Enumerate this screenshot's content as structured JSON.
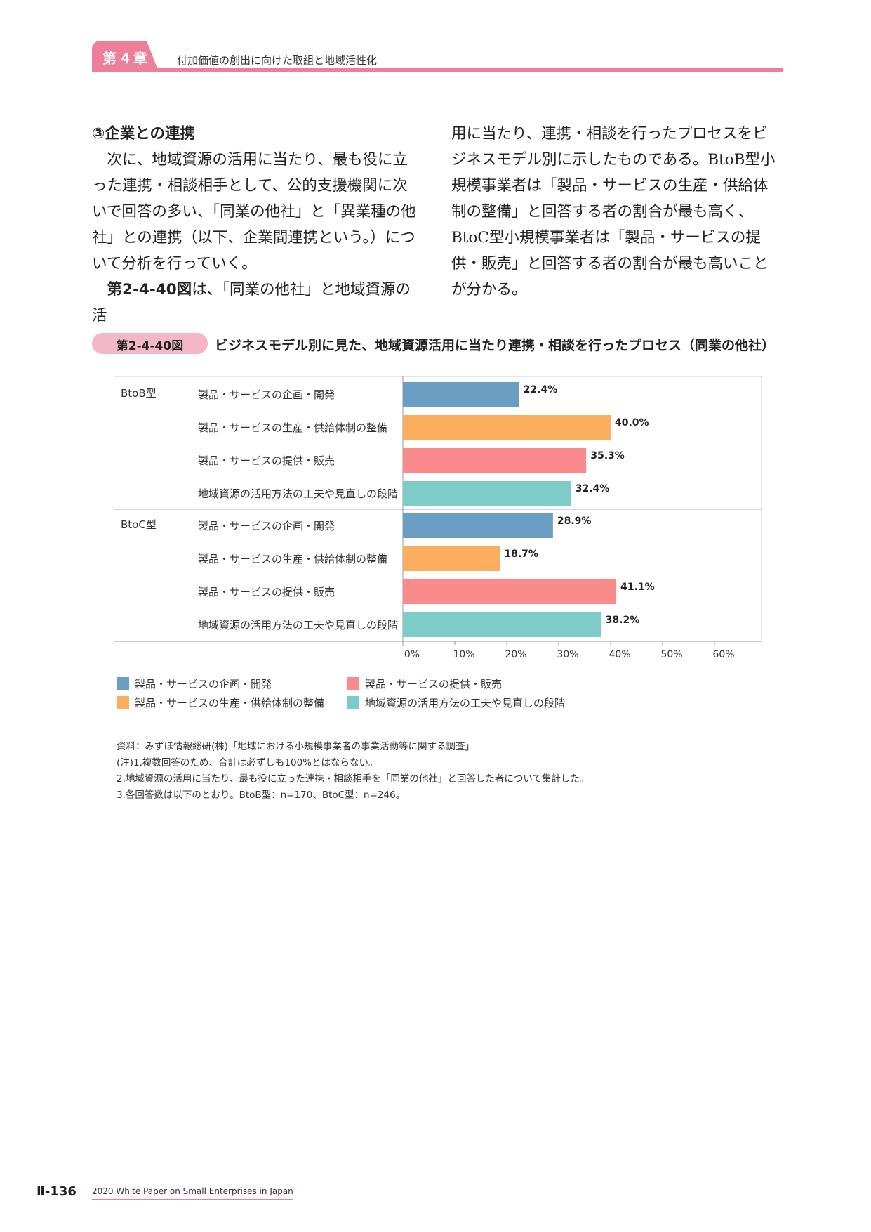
{
  "header": {
    "chapter": "第４章",
    "title": "付加価値の創出に向けた取組と地域活性化"
  },
  "body": {
    "section_heading": "③企業との連携",
    "para1": "次に、地域資源の活用に当たり、最も役に立った連携・相談相手として、公的支援機関に次いで回答の多い、「同業の他社」と「異業種の他社」との連携（以下、企業間連携という。）について分析を行っていく。",
    "para2_ref": "第2-4-40図",
    "para2_rest": "は、「同業の他社」と地域資源の活用に当たり、連携・相談を行ったプロセスをビジネスモデル別に示したものである。BtoB型小規模事業者は「製品・サービスの生産・供給体制の整備」と回答する者の割合が最も高く、BtoC型小規模事業者は「製品・サービスの提供・販売」と回答する者の割合が最も高いことが分かる。"
  },
  "figure": {
    "label": "第2-4-40図",
    "title": "ビジネスモデル別に見た、地域資源活用に当たり連携・相談を行ったプロセス（同業の他社）"
  },
  "chart_data": {
    "type": "bar",
    "orientation": "horizontal",
    "groups": [
      "BtoB型",
      "BtoC型"
    ],
    "categories": [
      "製品・サービスの企画・開発",
      "製品・サービスの生産・供給体制の整備",
      "製品・サービスの提供・販売",
      "地域資源の活用方法の工夫や見直しの段階"
    ],
    "series": [
      {
        "group": "BtoB型",
        "values": [
          22.4,
          40.0,
          35.3,
          32.4
        ],
        "labels": [
          "22.4%",
          "40.0%",
          "35.3%",
          "32.4%"
        ]
      },
      {
        "group": "BtoC型",
        "values": [
          28.9,
          18.7,
          41.1,
          38.2
        ],
        "labels": [
          "28.9%",
          "18.7%",
          "41.1%",
          "38.2%"
        ]
      }
    ],
    "colors": [
      "#6a9ec3",
      "#fbae5e",
      "#fb8a8d",
      "#7eccc8"
    ],
    "xlim": [
      0,
      60
    ],
    "xticks": [
      "0%",
      "10%",
      "20%",
      "30%",
      "40%",
      "50%",
      "60%"
    ],
    "legend": {
      "position": "bottom",
      "entries": [
        "製品・サービスの企画・開発",
        "製品・サービスの提供・販売",
        "製品・サービスの生産・供給体制の整備",
        "地域資源の活用方法の工夫や見直しの段階"
      ]
    }
  },
  "notes": [
    "資料：みずほ情報総研(株)「地域における小規模事業者の事業活動等に関する調査」",
    "(注)1.複数回答のため、合計は必ずしも100%とはならない。",
    "2.地域資源の活用に当たり、最も役に立った連携・相談相手を「同業の他社」と回答した者について集計した。",
    "3.各回答数は以下のとおり。BtoB型：n=170、BtoC型：n=246。"
  ],
  "footer": {
    "page": "Ⅱ-136",
    "text": "2020 White Paper on Small Enterprises in Japan"
  }
}
